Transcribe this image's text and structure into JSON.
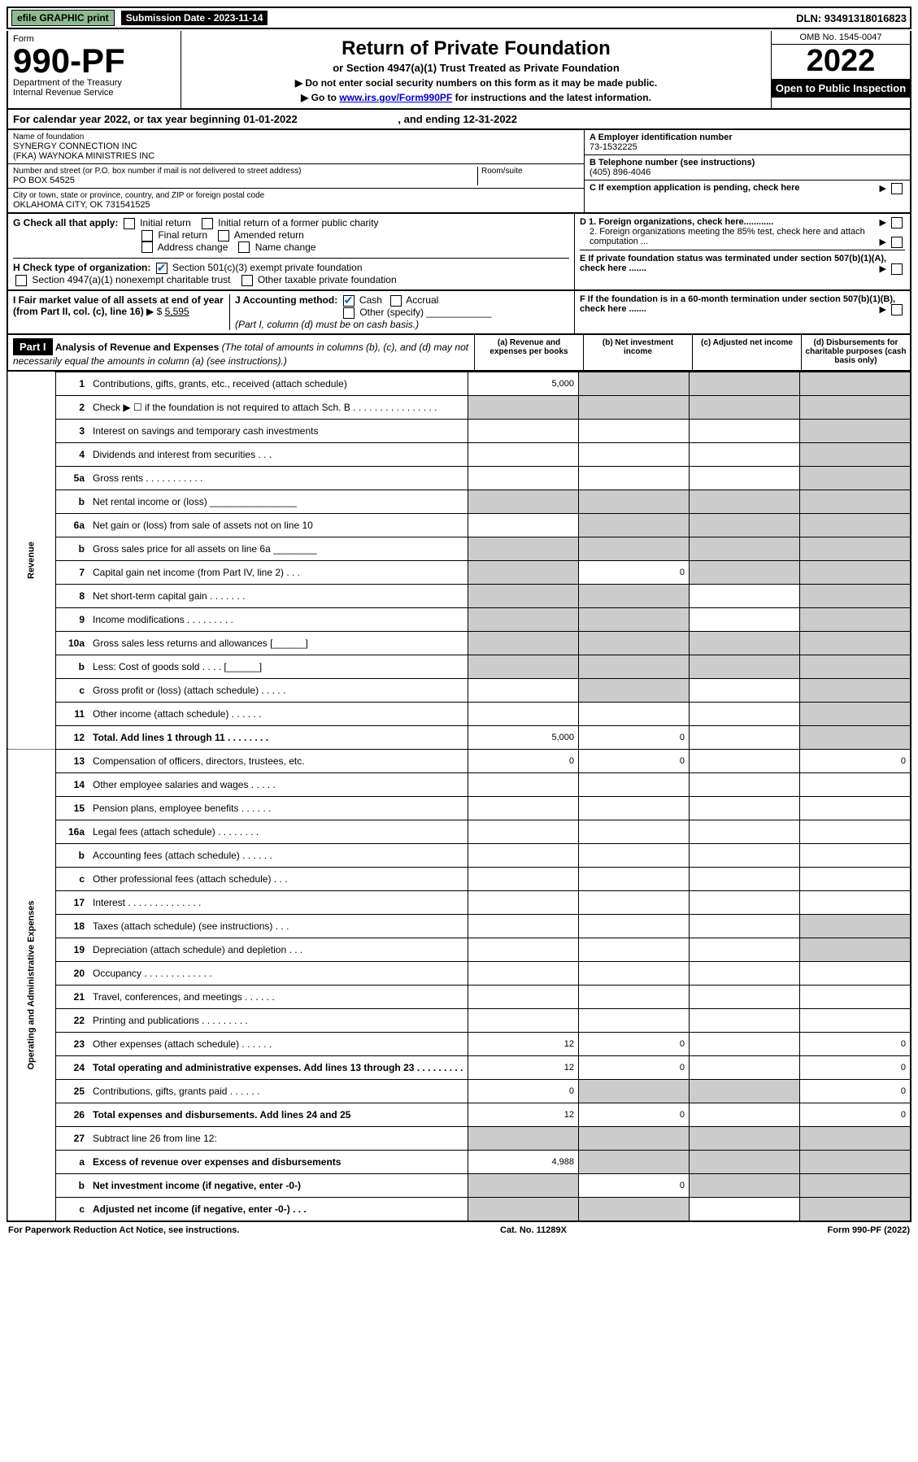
{
  "top": {
    "efile": "efile GRAPHIC print",
    "submission_label": "Submission Date - 2023-11-14",
    "dln": "DLN: 93491318016823"
  },
  "header": {
    "form_label": "Form",
    "form_number": "990-PF",
    "dept": "Department of the Treasury",
    "irs": "Internal Revenue Service",
    "title": "Return of Private Foundation",
    "subtitle": "or Section 4947(a)(1) Trust Treated as Private Foundation",
    "instr1": "▶ Do not enter social security numbers on this form as it may be made public.",
    "instr2_prefix": "▶ Go to ",
    "instr2_link": "www.irs.gov/Form990PF",
    "instr2_suffix": " for instructions and the latest information.",
    "omb": "OMB No. 1545-0047",
    "year": "2022",
    "open": "Open to Public Inspection"
  },
  "cal": {
    "text_a": "For calendar year 2022, or tax year beginning 01-01-2022",
    "text_b": ", and ending 12-31-2022"
  },
  "info": {
    "name_label": "Name of foundation",
    "name1": "SYNERGY CONNECTION INC",
    "name2": "(FKA) WAYNOKA MINISTRIES INC",
    "addr_label": "Number and street (or P.O. box number if mail is not delivered to street address)",
    "addr": "PO BOX 54525",
    "room_label": "Room/suite",
    "city_label": "City or town, state or province, country, and ZIP or foreign postal code",
    "city": "OKLAHOMA CITY, OK  731541525",
    "a_label": "A Employer identification number",
    "a_val": "73-1532225",
    "b_label": "B Telephone number (see instructions)",
    "b_val": "(405) 896-4046",
    "c_label": "C If exemption application is pending, check here"
  },
  "g": {
    "label": "G Check all that apply:",
    "opts": [
      "Initial return",
      "Initial return of a former public charity",
      "Final return",
      "Amended return",
      "Address change",
      "Name change"
    ]
  },
  "h": {
    "label": "H Check type of organization:",
    "opt1": "Section 501(c)(3) exempt private foundation",
    "opt2": "Section 4947(a)(1) nonexempt charitable trust",
    "opt3": "Other taxable private foundation"
  },
  "d": {
    "d1": "D 1. Foreign organizations, check here............",
    "d2": "2. Foreign organizations meeting the 85% test, check here and attach computation ...",
    "e": "E  If private foundation status was terminated under section 507(b)(1)(A), check here .......",
    "f": "F  If the foundation is in a 60-month termination under section 507(b)(1)(B), check here ......."
  },
  "i": {
    "label": "I Fair market value of all assets at end of year (from Part II, col. (c), line 16)",
    "amount": "5,595"
  },
  "j": {
    "label": "J Accounting method:",
    "cash": "Cash",
    "accrual": "Accrual",
    "other": "Other (specify)",
    "note": "(Part I, column (d) must be on cash basis.)"
  },
  "part1": {
    "label": "Part I",
    "title": "Analysis of Revenue and Expenses",
    "sub": "(The total of amounts in columns (b), (c), and (d) may not necessarily equal the amounts in column (a) (see instructions).)",
    "col_a": "(a)   Revenue and expenses per books",
    "col_b": "(b)   Net investment income",
    "col_c": "(c)   Adjusted net income",
    "col_d": "(d)   Disbursements for charitable purposes (cash basis only)"
  },
  "side_labels": {
    "revenue": "Revenue",
    "expenses": "Operating and Administrative Expenses"
  },
  "lines": [
    {
      "n": "1",
      "d": "Contributions, gifts, grants, etc., received (attach schedule)",
      "a": "5,000",
      "shade_b": true,
      "shade_c": true,
      "shade_d": true
    },
    {
      "n": "2",
      "d": "Check ▶ ☐ if the foundation is not required to attach Sch. B    .  .  .  .  .  .  .  .  .  .  .  .  .  .  .  .",
      "shade_a": true,
      "shade_b": true,
      "shade_c": true,
      "shade_d": true
    },
    {
      "n": "3",
      "d": "Interest on savings and temporary cash investments",
      "shade_d": true
    },
    {
      "n": "4",
      "d": "Dividends and interest from securities    .    .    .",
      "shade_d": true
    },
    {
      "n": "5a",
      "d": "Gross rents    .    .    .    .    .    .    .    .    .    .    .",
      "shade_d": true
    },
    {
      "n": "b",
      "d": "Net rental income or (loss) ________________",
      "shade_a": true,
      "shade_b": true,
      "shade_c": true,
      "shade_d": true
    },
    {
      "n": "6a",
      "d": "Net gain or (loss) from sale of assets not on line 10",
      "shade_b": true,
      "shade_c": true,
      "shade_d": true
    },
    {
      "n": "b",
      "d": "Gross sales price for all assets on line 6a ________",
      "shade_a": true,
      "shade_b": true,
      "shade_c": true,
      "shade_d": true
    },
    {
      "n": "7",
      "d": "Capital gain net income (from Part IV, line 2)    .    .    .",
      "shade_a": true,
      "b": "0",
      "shade_c": true,
      "shade_d": true
    },
    {
      "n": "8",
      "d": "Net short-term capital gain    .    .    .    .    .    .    .",
      "shade_a": true,
      "shade_b": true,
      "shade_d": true
    },
    {
      "n": "9",
      "d": "Income modifications  .    .    .    .    .    .    .    .    .",
      "shade_a": true,
      "shade_b": true,
      "shade_d": true
    },
    {
      "n": "10a",
      "d": "Gross sales less returns and allowances  [______]",
      "shade_a": true,
      "shade_b": true,
      "shade_c": true,
      "shade_d": true
    },
    {
      "n": "b",
      "d": "Less: Cost of goods sold    .    .    .    .    [______]",
      "shade_a": true,
      "shade_b": true,
      "shade_c": true,
      "shade_d": true
    },
    {
      "n": "c",
      "d": "Gross profit or (loss) (attach schedule)    .    .    .    .    .",
      "shade_b": true,
      "shade_d": true
    },
    {
      "n": "11",
      "d": "Other income (attach schedule)    .    .    .    .    .    .",
      "shade_d": true
    },
    {
      "n": "12",
      "d": "Total. Add lines 1 through 11    .    .    .    .    .    .    .    .",
      "bold": true,
      "a": "5,000",
      "b": "0",
      "shade_d": true
    },
    {
      "n": "13",
      "d": "Compensation of officers, directors, trustees, etc.",
      "a": "0",
      "b": "0",
      "dd": "0"
    },
    {
      "n": "14",
      "d": "Other employee salaries and wages    .    .    .    .    ."
    },
    {
      "n": "15",
      "d": "Pension plans, employee benefits  .    .    .    .    .    ."
    },
    {
      "n": "16a",
      "d": "Legal fees (attach schedule)  .    .    .    .    .    .    .    ."
    },
    {
      "n": "b",
      "d": "Accounting fees (attach schedule)  .    .    .    .    .    ."
    },
    {
      "n": "c",
      "d": "Other professional fees (attach schedule)    .    .    ."
    },
    {
      "n": "17",
      "d": "Interest  .    .    .    .    .    .    .    .    .    .    .    .    .    ."
    },
    {
      "n": "18",
      "d": "Taxes (attach schedule) (see instructions)    .    .    .",
      "shade_d": true
    },
    {
      "n": "19",
      "d": "Depreciation (attach schedule) and depletion    .    .    .",
      "shade_d": true
    },
    {
      "n": "20",
      "d": "Occupancy  .    .    .    .    .    .    .    .    .    .    .    .    ."
    },
    {
      "n": "21",
      "d": "Travel, conferences, and meetings  .    .    .    .    .    ."
    },
    {
      "n": "22",
      "d": "Printing and publications  .    .    .    .    .    .    .    .    ."
    },
    {
      "n": "23",
      "d": "Other expenses (attach schedule)  .    .    .    .    .    .",
      "a": "12",
      "b": "0",
      "dd": "0"
    },
    {
      "n": "24",
      "d": "Total operating and administrative expenses. Add lines 13 through 23    .    .    .    .    .    .    .    .    .",
      "bold": true,
      "a": "12",
      "b": "0",
      "dd": "0"
    },
    {
      "n": "25",
      "d": "Contributions, gifts, grants paid    .    .    .    .    .    .",
      "a": "0",
      "shade_b": true,
      "shade_c": true,
      "dd": "0"
    },
    {
      "n": "26",
      "d": "Total expenses and disbursements. Add lines 24 and 25",
      "bold": true,
      "a": "12",
      "b": "0",
      "dd": "0"
    },
    {
      "n": "27",
      "d": "Subtract line 26 from line 12:",
      "shade_a": true,
      "shade_b": true,
      "shade_c": true,
      "shade_d": true
    },
    {
      "n": "a",
      "d": "Excess of revenue over expenses and disbursements",
      "bold": true,
      "a": "4,988",
      "shade_b": true,
      "shade_c": true,
      "shade_d": true
    },
    {
      "n": "b",
      "d": "Net investment income (if negative, enter -0-)",
      "bold": true,
      "shade_a": true,
      "b": "0",
      "shade_c": true,
      "shade_d": true
    },
    {
      "n": "c",
      "d": "Adjusted net income (if negative, enter -0-)    .    .    .",
      "bold": true,
      "shade_a": true,
      "shade_b": true,
      "shade_d": true
    }
  ],
  "footer": {
    "left": "For Paperwork Reduction Act Notice, see instructions.",
    "mid": "Cat. No. 11289X",
    "right": "Form 990-PF (2022)"
  }
}
